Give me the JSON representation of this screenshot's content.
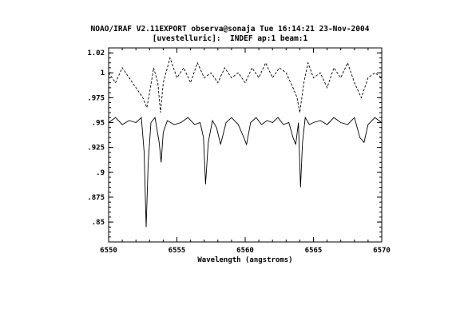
{
  "chart_data": {
    "type": "line",
    "title": "NOAO/IRAF V2.11EXPORT observa@sonaja Tue 16:14:21 23-Nov-2004",
    "subtitle": "[uvestelluric]:  INDEF ap:1 beam:1",
    "xlabel": "Wavelength (angstroms)",
    "ylabel": "",
    "xlim": [
      6550,
      6570
    ],
    "ylim": [
      0.83,
      1.025
    ],
    "x_ticks": [
      6550,
      6555,
      6560,
      6565,
      6570
    ],
    "x_tick_labels": [
      "6550",
      "6555",
      "6560",
      "6565",
      "6570"
    ],
    "y_ticks": [
      0.85,
      0.875,
      0.9,
      0.925,
      0.95,
      0.975,
      1,
      1.02
    ],
    "y_tick_labels": [
      ".85",
      ".875",
      ".9",
      ".925",
      ".95",
      ".975",
      "1",
      "1.02"
    ],
    "grid": false,
    "series": [
      {
        "style": "dashed",
        "x": [
          6550.0,
          6550.5,
          6551.0,
          6551.5,
          6552.0,
          6552.5,
          6552.8,
          6553.0,
          6553.3,
          6553.6,
          6553.8,
          6554.0,
          6554.5,
          6555.0,
          6555.5,
          6556.0,
          6556.5,
          6557.0,
          6557.5,
          6558.0,
          6558.5,
          6559.0,
          6559.5,
          6560.0,
          6560.5,
          6561.0,
          6561.5,
          6562.0,
          6562.5,
          6563.0,
          6563.5,
          6563.8,
          6564.0,
          6564.3,
          6564.6,
          6565.0,
          6565.5,
          6566.0,
          6566.5,
          6567.0,
          6567.5,
          6568.0,
          6568.5,
          6569.0,
          6569.5,
          6570.0
        ],
        "values": [
          1.0,
          0.99,
          1.005,
          0.995,
          0.985,
          0.975,
          0.965,
          0.98,
          1.005,
          0.99,
          0.96,
          0.99,
          1.015,
          0.995,
          1.005,
          0.99,
          1.01,
          0.995,
          1.0,
          0.99,
          1.005,
          0.995,
          1.0,
          0.99,
          1.005,
          0.995,
          1.01,
          0.995,
          1.005,
          1.0,
          0.985,
          0.975,
          0.96,
          0.99,
          1.01,
          0.995,
          1.0,
          0.985,
          1.005,
          0.995,
          1.01,
          0.99,
          0.975,
          0.995,
          1.0,
          0.995
        ]
      },
      {
        "style": "solid",
        "x": [
          6550.0,
          6550.5,
          6551.0,
          6551.5,
          6552.0,
          6552.4,
          6552.6,
          6552.75,
          6552.9,
          6553.1,
          6553.4,
          6553.7,
          6553.85,
          6554.0,
          6554.3,
          6554.8,
          6555.3,
          6555.8,
          6556.3,
          6556.7,
          6556.95,
          6557.1,
          6557.3,
          6557.6,
          6557.9,
          6558.2,
          6558.6,
          6559.0,
          6559.5,
          6559.9,
          6560.1,
          6560.4,
          6560.8,
          6561.2,
          6561.6,
          6562.0,
          6562.4,
          6562.8,
          6563.2,
          6563.5,
          6563.7,
          6563.9,
          6564.05,
          6564.2,
          6564.4,
          6564.7,
          6565.0,
          6565.5,
          6566.0,
          6566.5,
          6567.0,
          6567.5,
          6568.0,
          6568.4,
          6568.7,
          6569.0,
          6569.5,
          6570.0
        ],
        "values": [
          0.95,
          0.955,
          0.948,
          0.952,
          0.95,
          0.955,
          0.92,
          0.845,
          0.91,
          0.95,
          0.955,
          0.93,
          0.91,
          0.94,
          0.952,
          0.948,
          0.95,
          0.955,
          0.948,
          0.95,
          0.935,
          0.888,
          0.93,
          0.952,
          0.945,
          0.928,
          0.95,
          0.955,
          0.948,
          0.935,
          0.928,
          0.95,
          0.955,
          0.948,
          0.952,
          0.95,
          0.955,
          0.948,
          0.95,
          0.935,
          0.928,
          0.95,
          0.885,
          0.93,
          0.955,
          0.948,
          0.95,
          0.952,
          0.948,
          0.955,
          0.95,
          0.948,
          0.955,
          0.935,
          0.93,
          0.948,
          0.955,
          0.95
        ]
      }
    ]
  }
}
